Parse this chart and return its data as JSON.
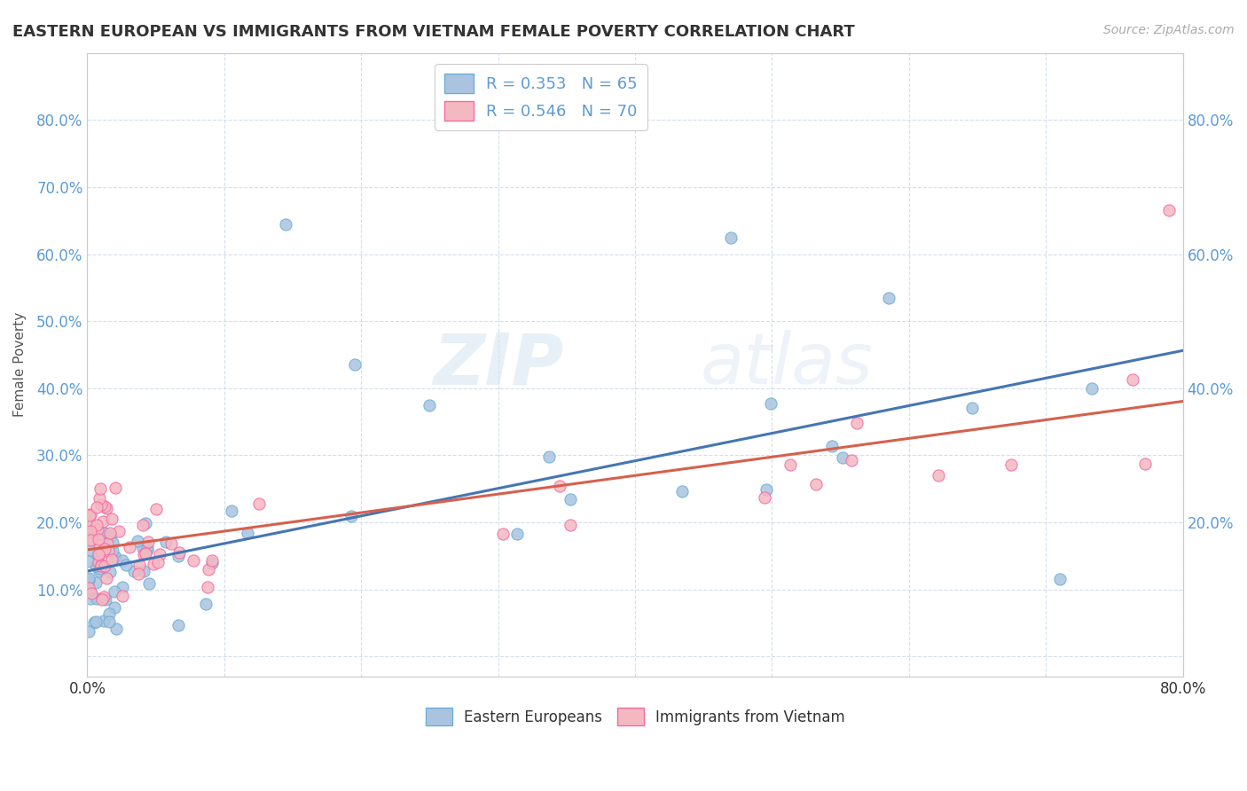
{
  "title": "EASTERN EUROPEAN VS IMMIGRANTS FROM VIETNAM FEMALE POVERTY CORRELATION CHART",
  "source": "Source: ZipAtlas.com",
  "ylabel": "Female Poverty",
  "xlim": [
    0.0,
    0.8
  ],
  "ylim": [
    -0.03,
    0.9
  ],
  "series1_color": "#aac4e0",
  "series1_edge": "#6baed6",
  "series2_color": "#f4b8c1",
  "series2_edge": "#f768a1",
  "line1_color": "#4575b4",
  "line2_color": "#d6604d",
  "R1": 0.353,
  "N1": 65,
  "R2": 0.546,
  "N2": 70,
  "watermark_zip": "ZIP",
  "watermark_atlas": "atlas",
  "legend1_label": "Eastern Europeans",
  "legend2_label": "Immigrants from Vietnam"
}
